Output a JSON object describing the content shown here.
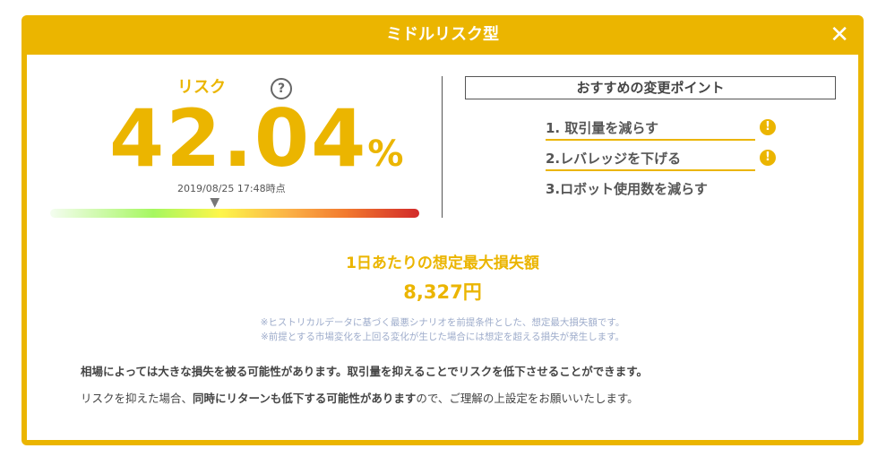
{
  "dialog": {
    "title": "ミドルリスク型",
    "close_icon": "close-icon"
  },
  "risk": {
    "label": "リスク",
    "help": "?",
    "value": "42.04",
    "unit": "%",
    "timestamp": "2019/08/25 17:48時点",
    "gauge_position_percent": 45
  },
  "recommend": {
    "title": "おすすめの変更ポイント",
    "items": [
      {
        "label": "1. 取引量を減らす",
        "warn": "!"
      },
      {
        "label": "2.レバレッジを下げる",
        "warn": "!"
      },
      {
        "label": "3.ロボット使用数を減らす"
      }
    ]
  },
  "loss": {
    "title": "1日あたりの想定最大損失額",
    "value": "8,327円",
    "notes": [
      "※ヒストリカルデータに基づく最悪シナリオを前提条件とした、想定最大損失額です。",
      "※前提とする市場変化を上回る変化が生じた場合には想定を超える損失が発生します。"
    ]
  },
  "message": {
    "line1": "相場によっては大きな損失を被る可能性があります。取引量を抑えることでリスクを低下させることができます。",
    "line2_a": "リスクを抑えた場合、",
    "line2_b": "同時にリターンも低下する可能性があります",
    "line2_c": "ので、ご理解の上設定をお願いいたします。"
  },
  "colors": {
    "accent": "#ebb500",
    "note": "#9eaccb"
  }
}
